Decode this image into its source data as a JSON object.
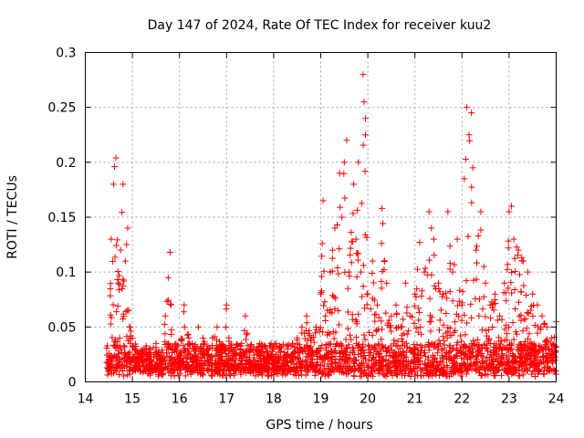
{
  "chart_data": {
    "type": "scatter",
    "title": "Day 147 of 2024, Rate Of TEC Index for receiver kuu2",
    "xlabel": "GPS time / hours",
    "ylabel": "ROTI / TECUs",
    "xlim": [
      14,
      24
    ],
    "ylim": [
      0,
      0.3
    ],
    "xticks": [
      "14",
      "15",
      "16",
      "17",
      "18",
      "19",
      "20",
      "21",
      "22",
      "23",
      "24"
    ],
    "yticks": [
      "0",
      "0.05",
      "0.1",
      "0.15",
      "0.2",
      "0.25",
      "0.3"
    ],
    "grid": true,
    "marker": "+",
    "color": "#ff0000",
    "series": [
      {
        "x": [
          14.5,
          14.55,
          14.6,
          14.62,
          14.65,
          14.7,
          14.75,
          14.8,
          14.85,
          14.9,
          14.95,
          15.0,
          15.05,
          15.1,
          15.2,
          15.3,
          15.4,
          15.5,
          15.6,
          15.7,
          15.8,
          15.85,
          15.9,
          16.0,
          16.1,
          16.2,
          16.3,
          16.4,
          16.5,
          16.6,
          16.7,
          16.8,
          16.9,
          17.0,
          17.05,
          17.1,
          17.2,
          17.3,
          17.4,
          17.5,
          17.6,
          17.7,
          17.8,
          17.9,
          18.0,
          18.1,
          18.2,
          18.3,
          18.4,
          18.5,
          18.6,
          18.7,
          18.8,
          18.9,
          19.0,
          19.05,
          19.1,
          19.2,
          19.25,
          19.3,
          19.4,
          19.45,
          19.5,
          19.55,
          19.6,
          19.7,
          19.75,
          19.8,
          19.85,
          19.9,
          19.92,
          19.95,
          20.0,
          20.1,
          20.2,
          20.3,
          20.4,
          20.5,
          20.6,
          20.7,
          20.8,
          20.9,
          21.0,
          21.1,
          21.2,
          21.3,
          21.35,
          21.4,
          21.5,
          21.6,
          21.7,
          21.8,
          21.9,
          22.0,
          22.05,
          22.1,
          22.15,
          22.2,
          22.3,
          22.4,
          22.5,
          22.6,
          22.7,
          22.8,
          22.9,
          23.0,
          23.05,
          23.1,
          23.2,
          23.3,
          23.4,
          23.5,
          23.6,
          23.7,
          23.8,
          23.9,
          24.0
        ],
        "y": [
          0.02,
          0.13,
          0.18,
          0.196,
          0.204,
          0.09,
          0.12,
          0.18,
          0.11,
          0.14,
          0.05,
          0.04,
          0.03,
          0.02,
          0.025,
          0.03,
          0.02,
          0.035,
          0.02,
          0.06,
          0.118,
          0.03,
          0.02,
          0.025,
          0.07,
          0.04,
          0.03,
          0.05,
          0.04,
          0.03,
          0.04,
          0.05,
          0.03,
          0.07,
          0.04,
          0.03,
          0.02,
          0.03,
          0.06,
          0.03,
          0.02,
          0.035,
          0.02,
          0.025,
          0.02,
          0.015,
          0.02,
          0.03,
          0.035,
          0.04,
          0.05,
          0.06,
          0.04,
          0.05,
          0.08,
          0.165,
          0.06,
          0.1,
          0.12,
          0.14,
          0.19,
          0.15,
          0.2,
          0.22,
          0.1,
          0.18,
          0.13,
          0.2,
          0.1,
          0.28,
          0.255,
          0.24,
          0.08,
          0.11,
          0.07,
          0.158,
          0.09,
          0.06,
          0.07,
          0.05,
          0.09,
          0.06,
          0.08,
          0.127,
          0.1,
          0.155,
          0.14,
          0.13,
          0.09,
          0.08,
          0.155,
          0.1,
          0.13,
          0.07,
          0.185,
          0.25,
          0.225,
          0.245,
          0.12,
          0.155,
          0.09,
          0.07,
          0.08,
          0.06,
          0.09,
          0.155,
          0.16,
          0.13,
          0.12,
          0.11,
          0.1,
          0.08,
          0.07,
          0.06,
          0.05,
          0.04,
          0.055
        ],
        "dense_band_y": [
          0.005,
          0.035
        ]
      }
    ]
  }
}
